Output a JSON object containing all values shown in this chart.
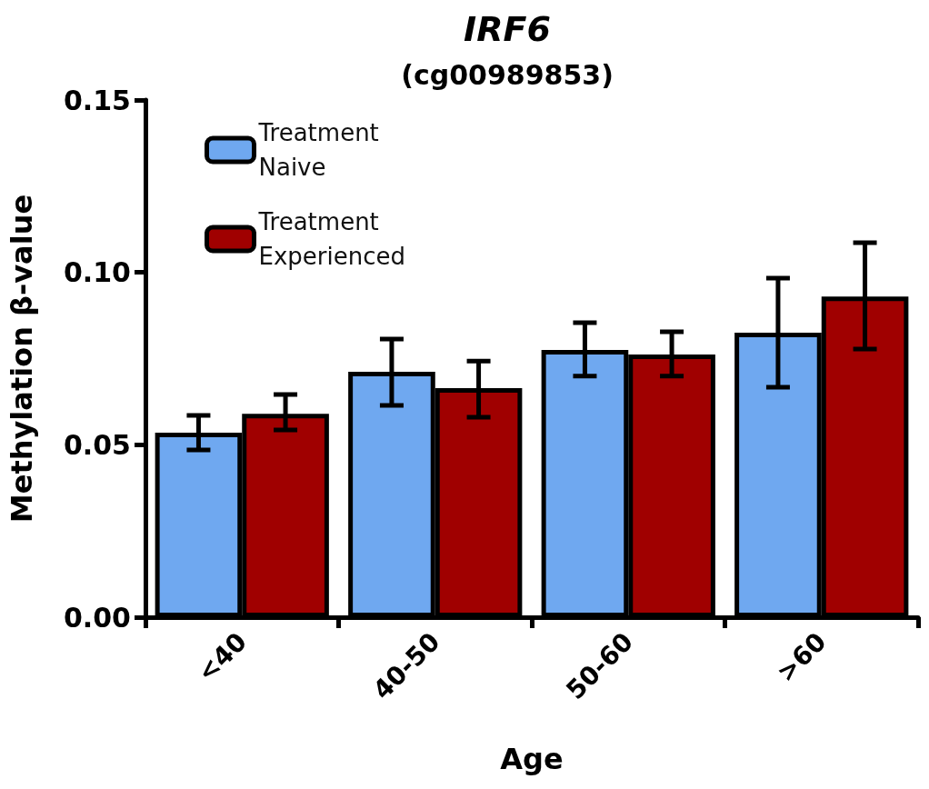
{
  "chart_data": {
    "type": "bar",
    "title": "IRF6",
    "subtitle": "(cg00989853)",
    "xlabel": "Age",
    "ylabel": "Methylation β-value",
    "categories": [
      "<40",
      "40-50",
      "50-60",
      ">60"
    ],
    "series": [
      {
        "name": "Treatment Naive",
        "color": "#6fa8f0",
        "values": [
          0.0535,
          0.0712,
          0.0775,
          0.0825
        ],
        "errors": [
          [
            0.0485,
            0.0585
          ],
          [
            0.0614,
            0.0807
          ],
          [
            0.0699,
            0.0854
          ],
          [
            0.0667,
            0.0983
          ]
        ]
      },
      {
        "name": "Treatment Experienced",
        "color": "#a00000",
        "values": [
          0.059,
          0.0664,
          0.0762,
          0.093
        ],
        "errors": [
          [
            0.0543,
            0.0646
          ],
          [
            0.058,
            0.0743
          ],
          [
            0.0699,
            0.0828
          ],
          [
            0.0778,
            0.1086
          ]
        ]
      }
    ],
    "ylim": [
      0,
      0.15
    ],
    "yticks": [
      {
        "value": 0,
        "label": "0.00"
      },
      {
        "value": 0.05,
        "label": "0.05"
      },
      {
        "value": 0.1,
        "label": "0.10"
      },
      {
        "value": 0.15,
        "label": "0.15"
      }
    ],
    "grid": false,
    "legend": "top left"
  }
}
